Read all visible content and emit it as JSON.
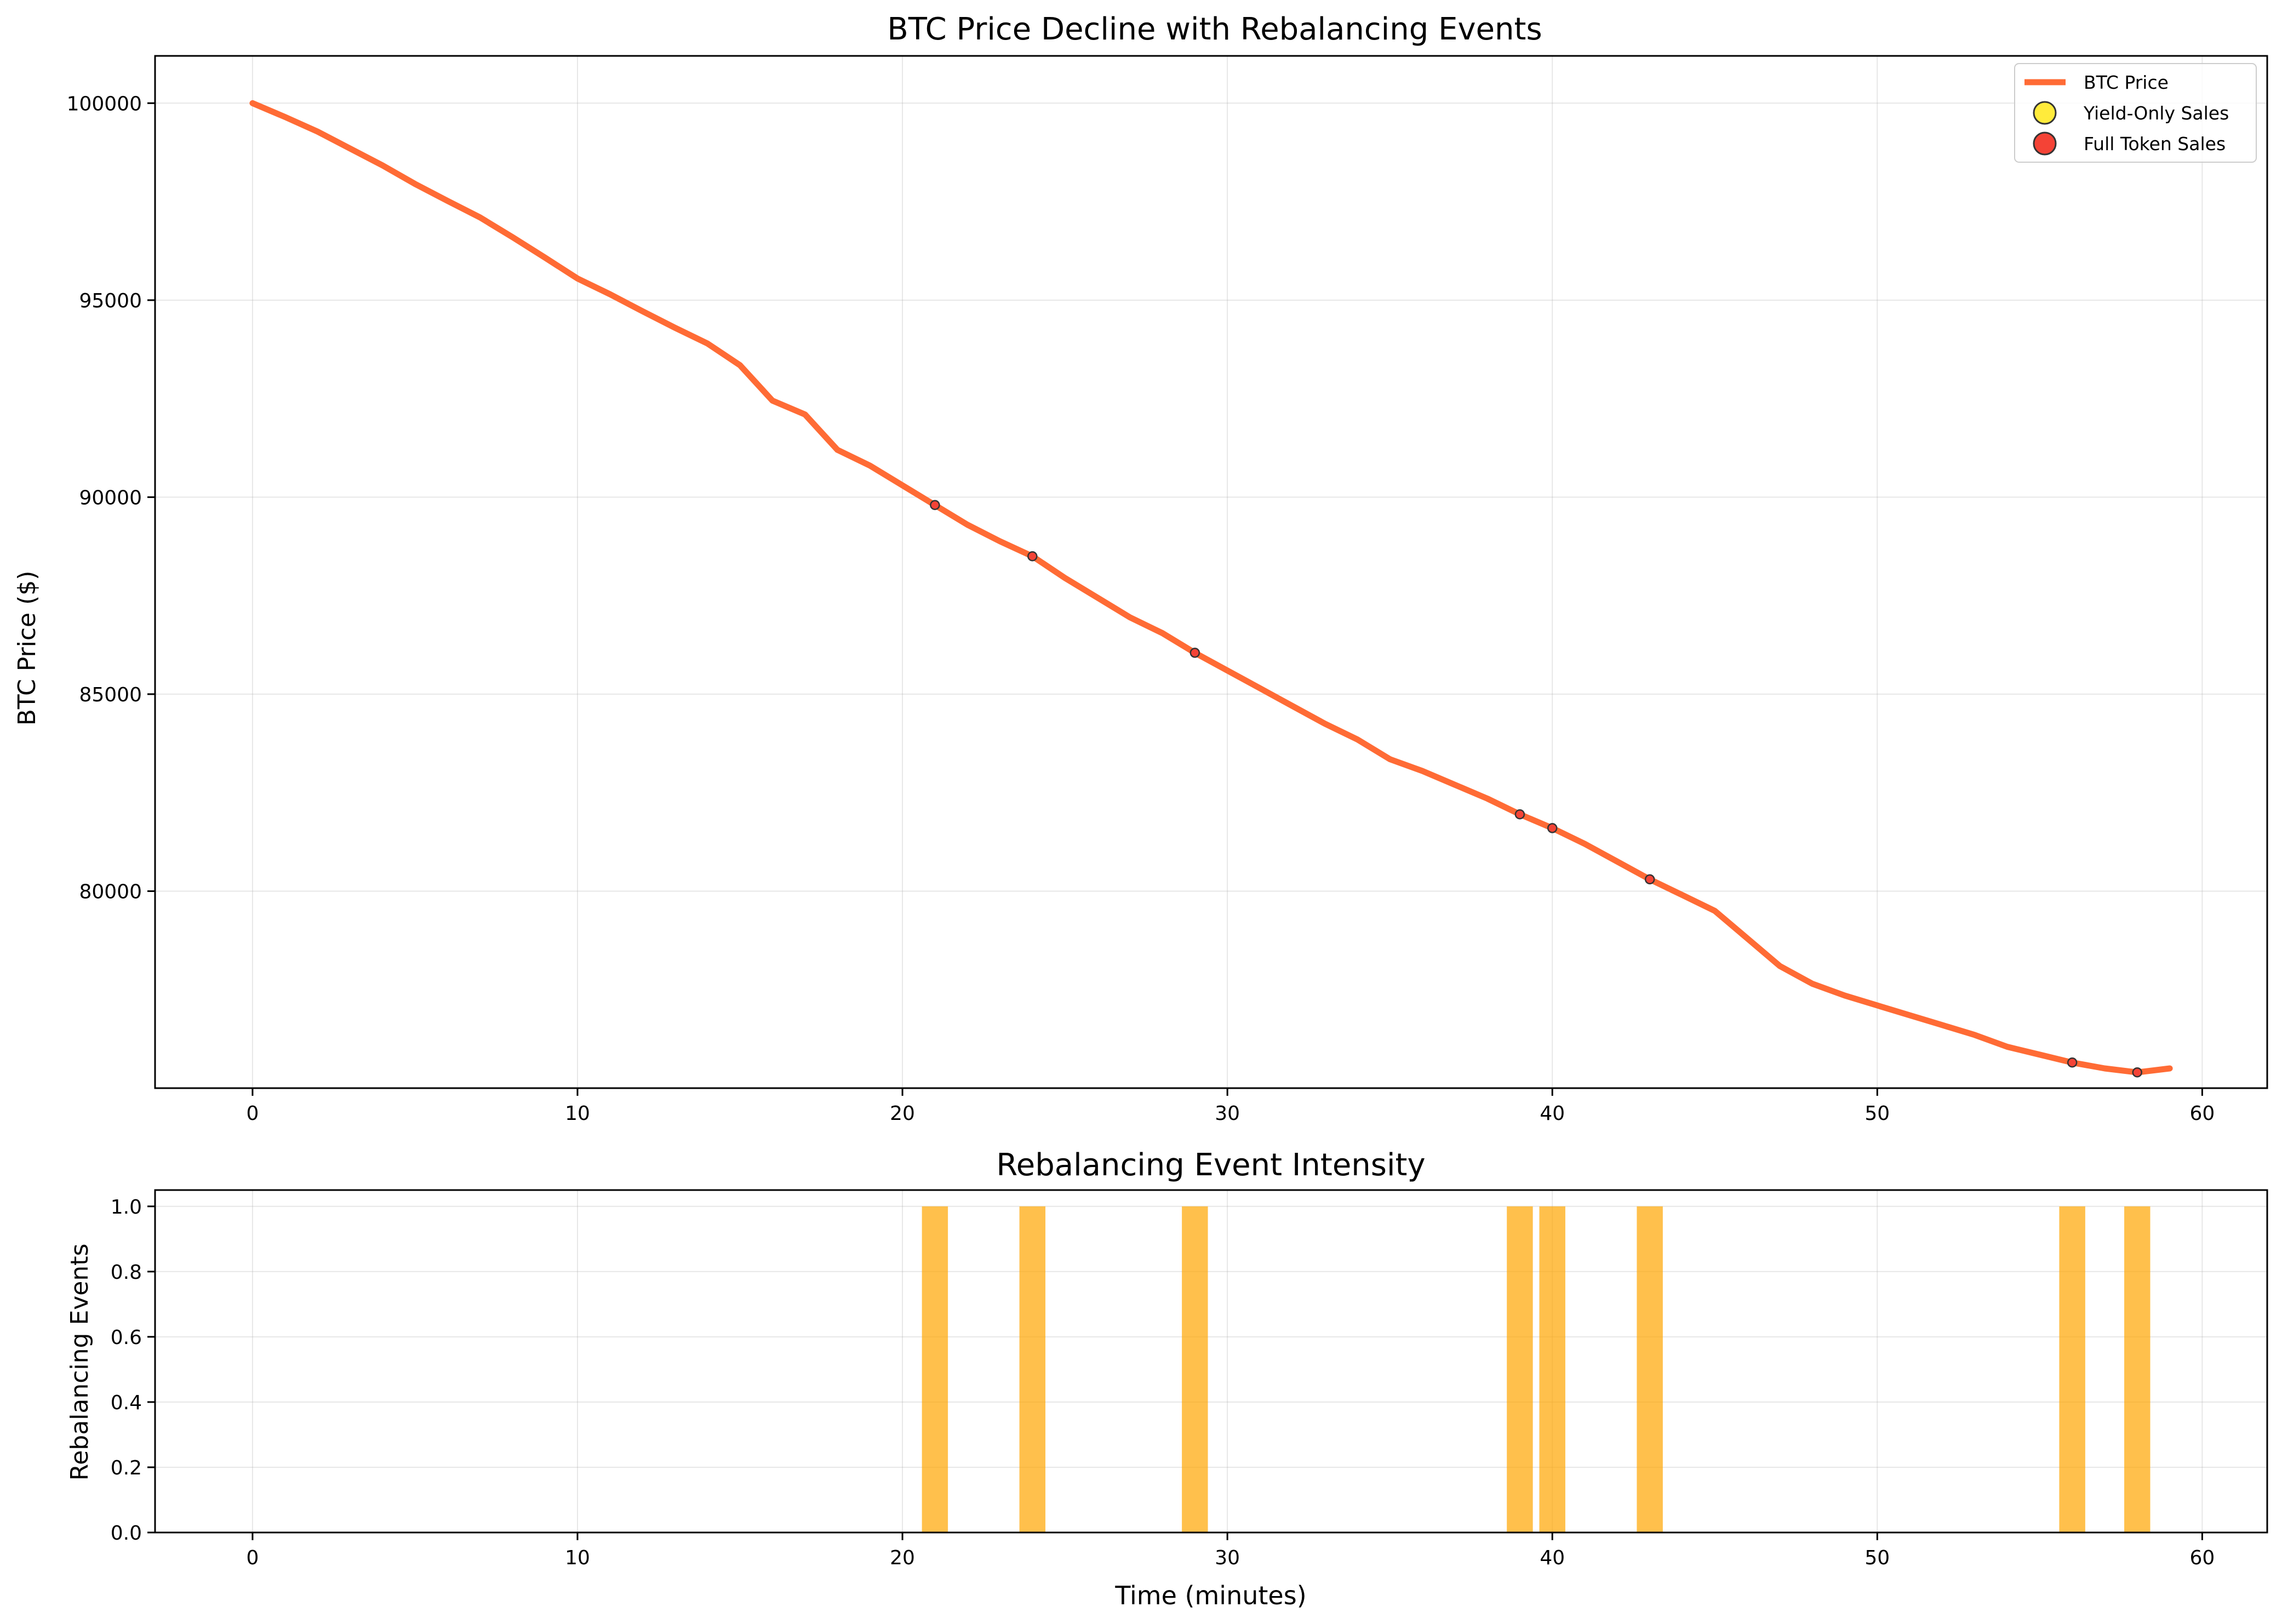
{
  "chart_data": [
    {
      "type": "line",
      "title": "BTC Price Decline with Rebalancing Events",
      "xlabel": "",
      "ylabel": "BTC Price ($)",
      "xlim": [
        -3,
        62
      ],
      "ylim": [
        75000,
        101200
      ],
      "x_ticks": [
        0,
        10,
        20,
        30,
        40,
        50,
        60
      ],
      "y_ticks": [
        80000,
        85000,
        90000,
        95000,
        100000
      ],
      "grid": true,
      "legend_position": "top-right",
      "legend": [
        "BTC Price",
        "Yield-Only Sales",
        "Full Token Sales"
      ],
      "series": [
        {
          "name": "BTC Price",
          "color": "#ff6b35",
          "x": [
            0,
            1,
            2,
            3,
            4,
            5,
            6,
            7,
            8,
            9,
            10,
            11,
            12,
            13,
            14,
            15,
            16,
            17,
            18,
            19,
            20,
            21,
            22,
            23,
            24,
            25,
            26,
            27,
            28,
            29,
            30,
            31,
            32,
            33,
            34,
            35,
            36,
            37,
            38,
            39,
            40,
            41,
            42,
            43,
            44,
            45,
            46,
            47,
            48,
            49,
            50,
            51,
            52,
            53,
            54,
            55,
            56,
            57,
            58,
            59
          ],
          "y": [
            100000,
            99650,
            99280,
            98850,
            98420,
            97950,
            97520,
            97100,
            96600,
            96080,
            95550,
            95150,
            94720,
            94300,
            93900,
            93350,
            92450,
            92100,
            91200,
            90800,
            90300,
            89800,
            89300,
            88880,
            88500,
            87950,
            87450,
            86950,
            86550,
            86050,
            85600,
            85150,
            84700,
            84250,
            83850,
            83350,
            83050,
            82700,
            82350,
            81950,
            81600,
            81200,
            80750,
            80300,
            79900,
            79500,
            78800,
            78100,
            77650,
            77350,
            77100,
            76850,
            76600,
            76350,
            76050,
            75850,
            75650,
            75500,
            75400,
            75500
          ]
        },
        {
          "name": "Yield-Only Sales",
          "color": "#ffeb3b",
          "x": [],
          "y": []
        },
        {
          "name": "Full Token Sales",
          "color": "#f44336",
          "x": [
            21,
            24,
            29,
            39,
            40,
            43,
            56,
            58
          ],
          "y": [
            89800,
            88500,
            86050,
            81950,
            81600,
            80300,
            75650,
            75400
          ]
        }
      ]
    },
    {
      "type": "bar",
      "title": "Rebalancing Event Intensity",
      "xlabel": "Time (minutes)",
      "ylabel": "Rebalancing Events",
      "xlim": [
        -3,
        62
      ],
      "ylim": [
        0,
        1.05
      ],
      "x_ticks": [
        0,
        10,
        20,
        30,
        40,
        50,
        60
      ],
      "y_ticks": [
        "0.0",
        "0.2",
        "0.4",
        "0.6",
        "0.8",
        "1.0"
      ],
      "grid": true,
      "bar_color": "#ffa500",
      "x": [
        21,
        24,
        29,
        39,
        40,
        43,
        56,
        58
      ],
      "values": [
        1,
        1,
        1,
        1,
        1,
        1,
        1,
        1
      ]
    }
  ]
}
